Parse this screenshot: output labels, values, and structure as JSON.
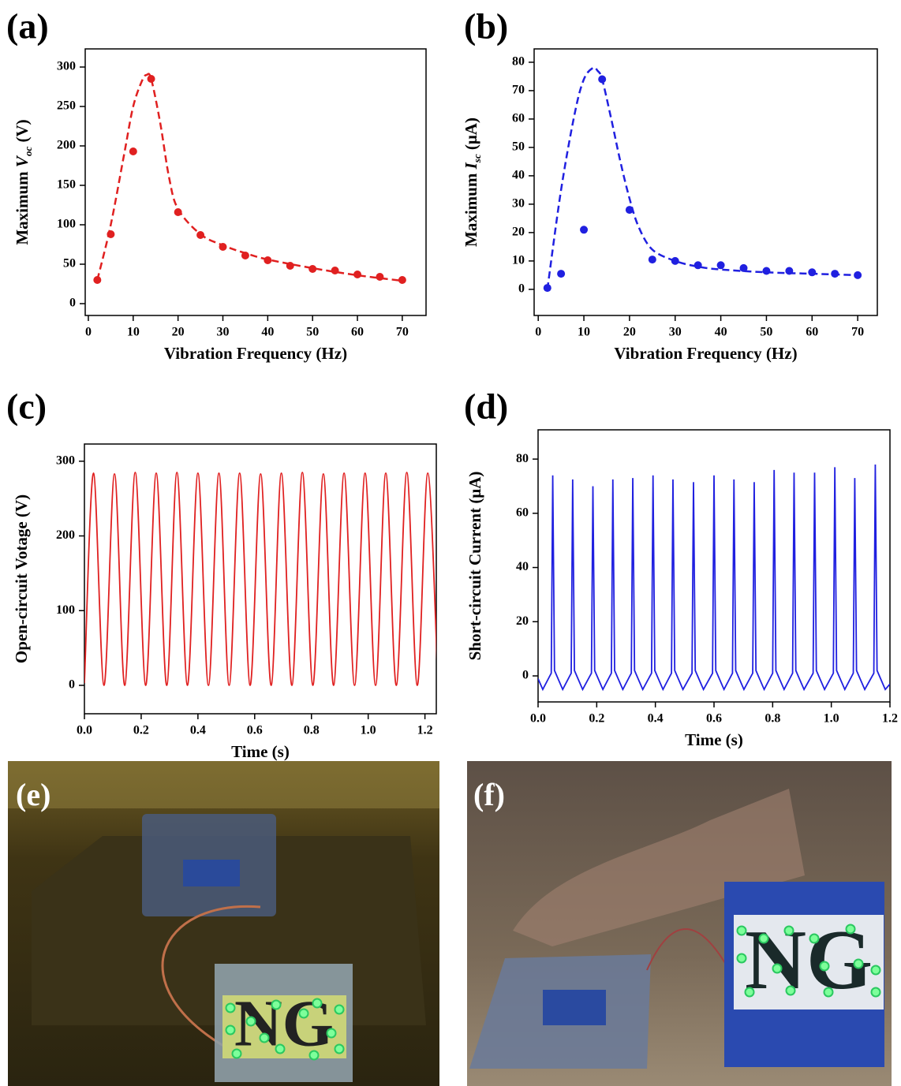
{
  "chart_data": [
    {
      "type": "scatter",
      "panel_label": "(a)",
      "x_label": "Vibration Frequency (Hz)",
      "y_label": [
        "Maximum ",
        "V",
        "oc",
        " (V)"
      ],
      "xlim": [
        -0.7,
        75.3
      ],
      "ylim": [
        -15,
        323
      ],
      "xticks": [
        0,
        10,
        20,
        30,
        40,
        50,
        60,
        70
      ],
      "yticks": [
        0,
        50,
        100,
        150,
        200,
        250,
        300
      ],
      "series": [
        {
          "color": "#e02020",
          "style": "points",
          "x": [
            2,
            5,
            10,
            14,
            20,
            25,
            30,
            35,
            40,
            45,
            50,
            55,
            60,
            65,
            70
          ],
          "values": [
            30,
            88,
            193,
            285,
            116,
            87,
            72,
            61,
            55,
            48,
            44,
            42,
            37,
            34,
            30
          ]
        },
        {
          "color": "#e02020",
          "style": "dashed",
          "x": [
            2,
            5,
            8,
            10,
            12,
            13,
            14,
            16,
            18,
            20,
            25,
            30,
            35,
            40,
            50,
            60,
            70
          ],
          "values": [
            30,
            100,
            190,
            250,
            283,
            290,
            285,
            230,
            160,
            120,
            88,
            74,
            64,
            56,
            45,
            36,
            29
          ]
        }
      ]
    },
    {
      "type": "scatter",
      "panel_label": "(b)",
      "x_label": "Vibration Frequency (Hz)",
      "y_label": [
        "Maximum ",
        "I",
        "sc",
        " (μA)"
      ],
      "xlim": [
        -0.9,
        74.3
      ],
      "ylim": [
        -9.2,
        84.7
      ],
      "xticks": [
        0,
        10,
        20,
        30,
        40,
        50,
        60,
        70
      ],
      "yticks": [
        0,
        10,
        20,
        30,
        40,
        50,
        60,
        70,
        80
      ],
      "series": [
        {
          "color": "#2020e0",
          "style": "points",
          "x": [
            2,
            5,
            10,
            14,
            20,
            25,
            30,
            35,
            40,
            45,
            50,
            55,
            60,
            65,
            70
          ],
          "values": [
            0.5,
            5.5,
            21,
            74,
            28,
            10.5,
            10,
            8.5,
            8.5,
            7.5,
            6.5,
            6.5,
            6,
            5.5,
            5
          ]
        },
        {
          "color": "#2020e0",
          "style": "dashed",
          "x": [
            2,
            5,
            8,
            10,
            12,
            13,
            14,
            16,
            18,
            20,
            22,
            25,
            30,
            35,
            40,
            50,
            60,
            70
          ],
          "values": [
            0,
            35,
            62,
            74,
            78,
            77,
            74,
            60,
            45,
            32,
            22,
            14,
            10,
            8,
            7,
            6,
            5.5,
            5
          ]
        }
      ]
    },
    {
      "type": "line",
      "panel_label": "(c)",
      "x_label": "Time (s)",
      "y_label": [
        "Open-circuit Votage (V)"
      ],
      "xlim": [
        0,
        1.24
      ],
      "ylim": [
        -38,
        323
      ],
      "xticks": [
        {
          "value": 0,
          "label": "0.0"
        },
        0.2,
        0.4,
        0.6,
        0.8,
        {
          "value": 1,
          "label": "1.0"
        },
        1.2
      ],
      "yticks": [
        0,
        100,
        200,
        300
      ],
      "x": [
        0,
        0.032,
        0.069,
        0.106,
        0.142,
        0.179,
        0.216,
        0.253,
        0.29,
        0.326,
        0.363,
        0.4,
        0.437,
        0.474,
        0.51,
        0.547,
        0.584,
        0.621,
        0.658,
        0.694,
        0.731,
        0.768,
        0.805,
        0.842,
        0.878,
        0.915,
        0.952,
        0.989,
        1.026,
        1.062,
        1.099,
        1.136,
        1.173,
        1.21,
        1.246
      ],
      "series": [
        {
          "color": "#e02020",
          "style": "smooth",
          "values": [
            3,
            284,
            0,
            283,
            0,
            285,
            0,
            284,
            0,
            285,
            0,
            284,
            0,
            284,
            0,
            284,
            0,
            283,
            0,
            284,
            0,
            285,
            0,
            283,
            0,
            284,
            0,
            284,
            0,
            284,
            0,
            285,
            0,
            284,
            0
          ]
        }
      ]
    },
    {
      "type": "line",
      "panel_label": "(d)",
      "x_label": "Time (s)",
      "y_label": [
        "Short-circuit Current (μA)"
      ],
      "xlim": [
        0,
        1.2
      ],
      "ylim": [
        -9.6,
        90.8
      ],
      "xticks": [
        {
          "value": 0,
          "label": "0.0"
        },
        0.2,
        0.4,
        0.6,
        0.8,
        {
          "value": 1,
          "label": "1.0"
        },
        1.2
      ],
      "yticks": [
        0,
        20,
        40,
        60,
        80
      ],
      "x": [
        0,
        0.016,
        0.045,
        0.05,
        0.056,
        0.084,
        0.113,
        0.118,
        0.124,
        0.152,
        0.182,
        0.187,
        0.193,
        0.221,
        0.25,
        0.255,
        0.261,
        0.289,
        0.318,
        0.323,
        0.329,
        0.357,
        0.387,
        0.392,
        0.398,
        0.426,
        0.455,
        0.46,
        0.466,
        0.494,
        0.525,
        0.53,
        0.536,
        0.564,
        0.595,
        0.6,
        0.606,
        0.634,
        0.663,
        0.668,
        0.674,
        0.702,
        0.732,
        0.737,
        0.743,
        0.771,
        0.8,
        0.805,
        0.811,
        0.839,
        0.868,
        0.873,
        0.879,
        0.907,
        0.938,
        0.943,
        0.949,
        0.977,
        1.007,
        1.012,
        1.018,
        1.046,
        1.075,
        1.08,
        1.086,
        1.114,
        1.145,
        1.15,
        1.156,
        1.184,
        1.2
      ],
      "series": [
        {
          "color": "#2020e0",
          "style": "line",
          "values": [
            -1,
            -5,
            1,
            74,
            2,
            -5,
            1,
            72.5,
            2,
            -5,
            1,
            70,
            2,
            -5,
            1,
            72.5,
            2,
            -5,
            1,
            73,
            2,
            -5,
            1,
            74,
            2,
            -5,
            1,
            72.5,
            2,
            -5,
            1,
            71.5,
            2,
            -5,
            1,
            74,
            2,
            -5,
            1,
            72.5,
            2,
            -5,
            1,
            71.5,
            2,
            -5,
            1,
            76,
            2,
            -5,
            1,
            75,
            2,
            -5,
            1,
            75,
            2,
            -5,
            1,
            77,
            2,
            -5,
            1,
            73,
            2,
            -5,
            1,
            78,
            2,
            -5,
            -3
          ]
        }
      ]
    }
  ],
  "photos": [
    {
      "label": "(e)",
      "sign": "NG"
    },
    {
      "label": "(f)",
      "sign": "NG"
    }
  ]
}
